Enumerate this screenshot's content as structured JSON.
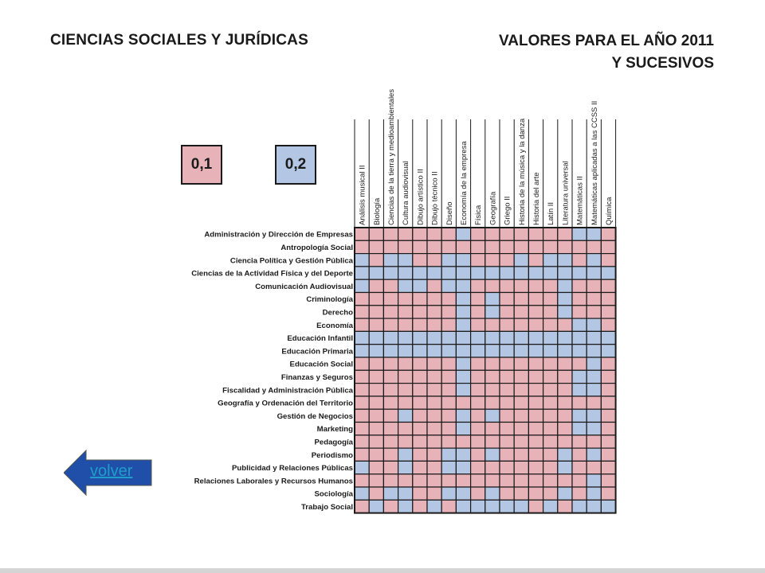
{
  "header": {
    "title_left": "CIENCIAS SOCIALES Y JURÍDICAS",
    "title_right_line1": "VALORES PARA EL AÑO 2011",
    "title_right_line2": "Y SUCESIVOS"
  },
  "legend": [
    {
      "label": "0,1",
      "value": 0.1,
      "color": "#e7b3b9"
    },
    {
      "label": "0,2",
      "value": 0.2,
      "color": "#b3c6e3"
    }
  ],
  "nav": {
    "back_label": "volver",
    "arrow_color": "#1f4fa8"
  },
  "chart_data": {
    "type": "heatmap",
    "title": "",
    "columns": [
      "Análisis musical II",
      "Biología",
      "Ciencias de la tierra y medioambientales",
      "Cultura audiovisual",
      "Dibujo artístico II",
      "Dibujo técnico II",
      "Diseño",
      "Economía de la empresa",
      "Física",
      "Geografía",
      "Griego II",
      "Historia de la música y la danza",
      "Historia del arte",
      "Latín II",
      "Literatura universal",
      "Matemáticas II",
      "Matemáticas aplicadas a las CCSS II",
      "Química"
    ],
    "rows": [
      "Administración y Dirección de Empresas",
      "Antropología Social",
      "Ciencia Política y Gestión Pública",
      "Ciencias de la Actividad Física y del Deporte",
      "Comunicación Audiovisual",
      "Criminología",
      "Derecho",
      "Economía",
      "Educación Infantil",
      "Educación Primaria",
      "Educación Social",
      "Finanzas y Seguros",
      "Fiscalidad y Administración Pública",
      "Geografía y Ordenación del Territorio",
      "Gestión de Negocios",
      "Marketing",
      "Pedagogía",
      "Periodismo",
      "Publicidad y Relaciones Públicas",
      "Relaciones Laborales y Recursos Humanos",
      "Sociología",
      "Trabajo Social"
    ],
    "values": [
      [
        0.1,
        0.1,
        0.1,
        0.1,
        0.1,
        0.1,
        0.1,
        0.2,
        0.1,
        0.1,
        0.1,
        0.1,
        0.1,
        0.1,
        0.1,
        0.2,
        0.2,
        0.1
      ],
      [
        0.1,
        0.1,
        0.1,
        0.1,
        0.1,
        0.1,
        0.1,
        0.1,
        0.1,
        0.1,
        0.1,
        0.1,
        0.1,
        0.1,
        0.1,
        0.1,
        0.1,
        0.1
      ],
      [
        0.2,
        0.1,
        0.2,
        0.2,
        0.1,
        0.1,
        0.2,
        0.2,
        0.1,
        0.1,
        0.1,
        0.2,
        0.1,
        0.2,
        0.2,
        0.1,
        0.2,
        0.1
      ],
      [
        0.2,
        0.2,
        0.2,
        0.2,
        0.2,
        0.2,
        0.2,
        0.2,
        0.2,
        0.2,
        0.2,
        0.2,
        0.2,
        0.2,
        0.2,
        0.2,
        0.2,
        0.2
      ],
      [
        0.2,
        0.1,
        0.1,
        0.2,
        0.2,
        0.1,
        0.2,
        0.2,
        0.1,
        0.1,
        0.1,
        0.1,
        0.1,
        0.1,
        0.2,
        0.1,
        0.1,
        0.1
      ],
      [
        0.1,
        0.1,
        0.1,
        0.1,
        0.1,
        0.1,
        0.1,
        0.2,
        0.1,
        0.2,
        0.1,
        0.1,
        0.1,
        0.1,
        0.2,
        0.1,
        0.1,
        0.1
      ],
      [
        0.1,
        0.1,
        0.1,
        0.1,
        0.1,
        0.1,
        0.1,
        0.2,
        0.1,
        0.2,
        0.1,
        0.1,
        0.1,
        0.1,
        0.2,
        0.1,
        0.1,
        0.1
      ],
      [
        0.1,
        0.1,
        0.1,
        0.1,
        0.1,
        0.1,
        0.1,
        0.2,
        0.1,
        0.1,
        0.1,
        0.1,
        0.1,
        0.1,
        0.1,
        0.2,
        0.2,
        0.1
      ],
      [
        0.2,
        0.2,
        0.2,
        0.2,
        0.2,
        0.2,
        0.2,
        0.2,
        0.2,
        0.2,
        0.2,
        0.2,
        0.2,
        0.2,
        0.2,
        0.2,
        0.2,
        0.2
      ],
      [
        0.2,
        0.2,
        0.2,
        0.2,
        0.2,
        0.2,
        0.2,
        0.2,
        0.2,
        0.2,
        0.2,
        0.2,
        0.2,
        0.2,
        0.2,
        0.2,
        0.2,
        0.2
      ],
      [
        0.1,
        0.1,
        0.1,
        0.1,
        0.1,
        0.1,
        0.1,
        0.2,
        0.1,
        0.1,
        0.1,
        0.1,
        0.1,
        0.1,
        0.1,
        0.1,
        0.2,
        0.1
      ],
      [
        0.1,
        0.1,
        0.1,
        0.1,
        0.1,
        0.1,
        0.1,
        0.2,
        0.1,
        0.1,
        0.1,
        0.1,
        0.1,
        0.1,
        0.1,
        0.2,
        0.2,
        0.1
      ],
      [
        0.1,
        0.1,
        0.1,
        0.1,
        0.1,
        0.1,
        0.1,
        0.2,
        0.1,
        0.1,
        0.1,
        0.1,
        0.1,
        0.1,
        0.1,
        0.2,
        0.2,
        0.1
      ],
      [
        0.1,
        0.1,
        0.1,
        0.1,
        0.1,
        0.1,
        0.1,
        0.1,
        0.1,
        0.1,
        0.1,
        0.1,
        0.1,
        0.1,
        0.1,
        0.1,
        0.1,
        0.1
      ],
      [
        0.1,
        0.1,
        0.1,
        0.2,
        0.1,
        0.1,
        0.1,
        0.2,
        0.1,
        0.2,
        0.1,
        0.1,
        0.1,
        0.1,
        0.1,
        0.2,
        0.2,
        0.1
      ],
      [
        0.1,
        0.1,
        0.1,
        0.1,
        0.1,
        0.1,
        0.1,
        0.2,
        0.1,
        0.1,
        0.1,
        0.1,
        0.1,
        0.1,
        0.1,
        0.2,
        0.2,
        0.1
      ],
      [
        0.1,
        0.1,
        0.1,
        0.1,
        0.1,
        0.1,
        0.1,
        0.1,
        0.1,
        0.1,
        0.1,
        0.1,
        0.1,
        0.1,
        0.1,
        0.1,
        0.1,
        0.1
      ],
      [
        0.1,
        0.1,
        0.1,
        0.2,
        0.1,
        0.1,
        0.2,
        0.2,
        0.1,
        0.2,
        0.1,
        0.1,
        0.1,
        0.1,
        0.2,
        0.1,
        0.2,
        0.1
      ],
      [
        0.2,
        0.1,
        0.1,
        0.2,
        0.1,
        0.1,
        0.2,
        0.2,
        0.1,
        0.1,
        0.1,
        0.1,
        0.1,
        0.1,
        0.2,
        0.1,
        0.1,
        0.1
      ],
      [
        0.1,
        0.1,
        0.1,
        0.1,
        0.1,
        0.1,
        0.1,
        0.1,
        0.1,
        0.1,
        0.1,
        0.1,
        0.1,
        0.1,
        0.1,
        0.1,
        0.2,
        0.1
      ],
      [
        0.2,
        0.1,
        0.2,
        0.2,
        0.1,
        0.1,
        0.2,
        0.2,
        0.1,
        0.2,
        0.1,
        0.1,
        0.1,
        0.1,
        0.2,
        0.1,
        0.2,
        0.1
      ],
      [
        0.1,
        0.2,
        0.1,
        0.2,
        0.1,
        0.2,
        0.1,
        0.2,
        0.2,
        0.2,
        0.2,
        0.2,
        0.1,
        0.2,
        0.1,
        0.2,
        0.2,
        0.2
      ]
    ]
  }
}
